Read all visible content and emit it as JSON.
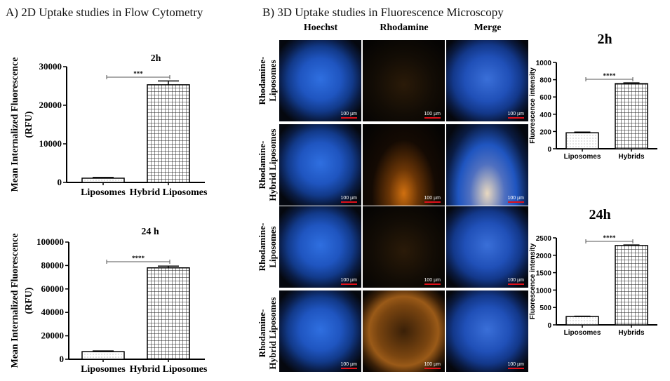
{
  "panel_a_title": "A) 2D Uptake studies in Flow Cytometry",
  "panel_b_title": "B) 3D Uptake studies in Fluorescence Microscopy",
  "microscopy": {
    "columns": [
      "Hoechst",
      "Rhodamine",
      "Merge"
    ],
    "rows": [
      "Rhodamine-\nLiposomes",
      "Rhodamine-\nHybrid Liposomes",
      "Rhodamine-\nLiposomes",
      "Rhodamine-\nHybrid Liposomes"
    ],
    "scale_bar": "100 µm"
  },
  "colors": {
    "hoechst": "#1f5fd6",
    "rhodamine": "#f0a020",
    "scale": "#e0101a"
  },
  "chart_data": [
    {
      "type": "bar",
      "title": "2h",
      "ylabel": "Mean Internalized Fluorescence\n(RFU)",
      "categories": [
        "Liposomes",
        "Hybrid Liposomes"
      ],
      "values": [
        1100,
        25300
      ],
      "errors": [
        200,
        1000
      ],
      "ylim": [
        0,
        30000
      ],
      "yticks": [
        0,
        10000,
        20000,
        30000
      ],
      "significance": "***"
    },
    {
      "type": "bar",
      "title": "24 h",
      "ylabel": "Mean Internalized Fluorescence\n(RFU)",
      "categories": [
        "Liposomes",
        "Hybrid Liposomes"
      ],
      "values": [
        6500,
        78000
      ],
      "errors": [
        600,
        1500
      ],
      "ylim": [
        0,
        100000
      ],
      "yticks": [
        0,
        20000,
        40000,
        60000,
        80000,
        100000
      ],
      "significance": "****"
    },
    {
      "type": "bar",
      "title": "2h",
      "ylabel": "Fluorescence intensity",
      "categories": [
        "Liposomes",
        "Hybrids"
      ],
      "values": [
        185,
        755
      ],
      "errors": [
        8,
        8
      ],
      "ylim": [
        0,
        1000
      ],
      "yticks": [
        0,
        200,
        400,
        600,
        800,
        1000
      ],
      "significance": "****"
    },
    {
      "type": "bar",
      "title": "24h",
      "ylabel": "Fluorescence intensity",
      "categories": [
        "Liposomes",
        "Hybrids"
      ],
      "values": [
        240,
        2280
      ],
      "errors": [
        10,
        15
      ],
      "ylim": [
        0,
        2500
      ],
      "yticks": [
        0,
        500,
        1000,
        1500,
        2000,
        2500
      ],
      "significance": "****"
    }
  ]
}
